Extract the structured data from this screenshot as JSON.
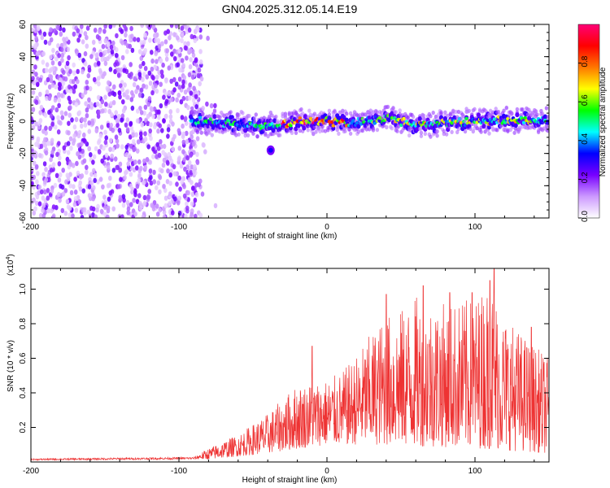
{
  "title": "GN04.2025.312.05.14.E19",
  "chart_data": [
    {
      "type": "heatmap",
      "xlabel": "Height of straight line (km)",
      "ylabel": "Frequency (Hz)",
      "xlim": [
        -200,
        150
      ],
      "ylim": [
        -60,
        60
      ],
      "xticks": [
        -200,
        -100,
        0,
        100
      ],
      "xtick_labels": [
        "-200",
        "-100",
        "0",
        "100"
      ],
      "yticks": [
        -60,
        -40,
        -20,
        0,
        20,
        40,
        60
      ],
      "ytick_labels": [
        "-60",
        "-40",
        "-20",
        "0",
        "20",
        "40",
        "60"
      ],
      "colorbar": {
        "label": "Normalized spectral amplitude",
        "range": [
          0,
          1
        ],
        "ticks": [
          0.0,
          0.2,
          0.4,
          0.6,
          0.8
        ],
        "tick_labels": [
          "0.0",
          "0.2",
          "0.4",
          "0.6",
          "0.8"
        ],
        "colors": [
          "#ffffff",
          "#cc99ff",
          "#7700ff",
          "#0000ff",
          "#00ffff",
          "#00ff00",
          "#ffff00",
          "#ff7700",
          "#ff0000",
          "#ff0077"
        ]
      },
      "features": [
        {
          "region": "noise",
          "x_range": [
            -200,
            -85
          ],
          "y_range": [
            -60,
            60
          ],
          "amplitude_range": [
            0.05,
            0.25
          ]
        },
        {
          "region": "signal-band",
          "x_range": [
            -90,
            150
          ],
          "center_frequency": 0,
          "half_width": 5,
          "amplitude_range": [
            0.2,
            1.0
          ]
        },
        {
          "region": "blob",
          "x": -38,
          "y": -18,
          "amplitude": 0.22
        }
      ],
      "band_center_points": [
        {
          "x": -90,
          "y": 0
        },
        {
          "x": -60,
          "y": -2
        },
        {
          "x": -40,
          "y": -3
        },
        {
          "x": -20,
          "y": 0
        },
        {
          "x": 0,
          "y": 0
        },
        {
          "x": 20,
          "y": -1
        },
        {
          "x": 40,
          "y": 2
        },
        {
          "x": 60,
          "y": -3
        },
        {
          "x": 80,
          "y": -1
        },
        {
          "x": 100,
          "y": 0
        },
        {
          "x": 120,
          "y": 1
        },
        {
          "x": 150,
          "y": 0
        }
      ]
    },
    {
      "type": "line",
      "xlabel": "Height of straight line (km)",
      "ylabel": "SNR (10 * v/v)",
      "y_multiplier": "(x10",
      "y_multiplier_exp": "4",
      "y_multiplier_close": ")",
      "xlim": [
        -200,
        150
      ],
      "ylim": [
        0,
        1.12
      ],
      "xticks": [
        -200,
        -100,
        0,
        100
      ],
      "xtick_labels": [
        "-200",
        "-100",
        "0",
        "100"
      ],
      "yticks": [
        0.2,
        0.4,
        0.6,
        0.8,
        1.0
      ],
      "ytick_labels": [
        "0.2",
        "0.4",
        "0.6",
        "0.8",
        "1.0"
      ],
      "line_color": "#ee3333",
      "envelope": [
        {
          "x": -200,
          "y": 0.02
        },
        {
          "x": -90,
          "y": 0.03
        },
        {
          "x": -80,
          "y": 0.08
        },
        {
          "x": -60,
          "y": 0.16
        },
        {
          "x": -40,
          "y": 0.28
        },
        {
          "x": -20,
          "y": 0.45
        },
        {
          "x": 0,
          "y": 0.48
        },
        {
          "x": 10,
          "y": 0.52
        },
        {
          "x": 20,
          "y": 0.62
        },
        {
          "x": 30,
          "y": 0.75
        },
        {
          "x": 40,
          "y": 0.85
        },
        {
          "x": 50,
          "y": 0.88
        },
        {
          "x": 60,
          "y": 0.96
        },
        {
          "x": 80,
          "y": 0.92
        },
        {
          "x": 100,
          "y": 0.95
        },
        {
          "x": 110,
          "y": 1.05
        },
        {
          "x": 120,
          "y": 0.85
        },
        {
          "x": 135,
          "y": 0.72
        },
        {
          "x": 150,
          "y": 0.6
        }
      ],
      "floor": [
        {
          "x": -200,
          "y": 0.01
        },
        {
          "x": -80,
          "y": 0.015
        },
        {
          "x": -40,
          "y": 0.05
        },
        {
          "x": 0,
          "y": 0.1
        },
        {
          "x": 30,
          "y": 0.1
        },
        {
          "x": 100,
          "y": 0.08
        },
        {
          "x": 150,
          "y": 0.05
        }
      ],
      "peaks": [
        {
          "x": -10,
          "y": 0.67
        },
        {
          "x": 40,
          "y": 0.97
        },
        {
          "x": 65,
          "y": 1.02
        },
        {
          "x": 83,
          "y": 0.98
        },
        {
          "x": 98,
          "y": 0.98
        },
        {
          "x": 110,
          "y": 1.05
        },
        {
          "x": 113,
          "y": 1.12
        },
        {
          "x": 138,
          "y": 0.78
        }
      ]
    }
  ]
}
